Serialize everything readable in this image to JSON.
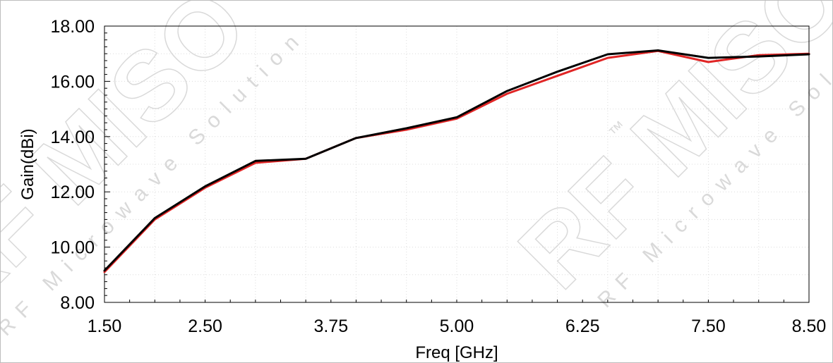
{
  "chart_data": {
    "type": "line",
    "title": "",
    "xlabel": "Freq [GHz]",
    "ylabel": "Gain(dBi)",
    "xlim": [
      1.5,
      8.5
    ],
    "ylim": [
      8.0,
      18.0
    ],
    "xticks": [
      1.5,
      2.5,
      3.75,
      5.0,
      6.25,
      7.5,
      8.5
    ],
    "xtick_labels": [
      "1.50",
      "2.50",
      "3.75",
      "5.00",
      "6.25",
      "7.50",
      "8.50"
    ],
    "yticks": [
      8,
      10,
      12,
      14,
      16,
      18
    ],
    "ytick_labels": [
      "8.00",
      "10.00",
      "12.00",
      "14.00",
      "16.00",
      "18.00"
    ],
    "grid": true,
    "legend": "none",
    "series": [
      {
        "color": "#e02525",
        "x": [
          1.5,
          2.0,
          2.5,
          3.0,
          3.5,
          4.0,
          4.5,
          5.0,
          5.5,
          6.0,
          6.5,
          7.0,
          7.5,
          8.0,
          8.5
        ],
        "y": [
          9.1,
          11.0,
          12.15,
          13.05,
          13.2,
          13.95,
          14.25,
          14.65,
          15.55,
          16.2,
          16.85,
          17.1,
          16.7,
          16.95,
          17.0
        ]
      },
      {
        "color": "#000000",
        "x": [
          1.5,
          2.0,
          2.5,
          3.0,
          3.5,
          4.0,
          4.5,
          5.0,
          5.5,
          6.0,
          6.5,
          7.0,
          7.5,
          8.0,
          8.5
        ],
        "y": [
          9.15,
          11.05,
          12.2,
          13.12,
          13.2,
          13.95,
          14.3,
          14.7,
          15.65,
          16.35,
          16.98,
          17.12,
          16.85,
          16.9,
          16.98
        ]
      }
    ]
  },
  "watermark": {
    "brand": "RF MISO",
    "tagline": "RF Microwave Solution",
    "trademark": "™",
    "color": "#d9d9d9"
  }
}
